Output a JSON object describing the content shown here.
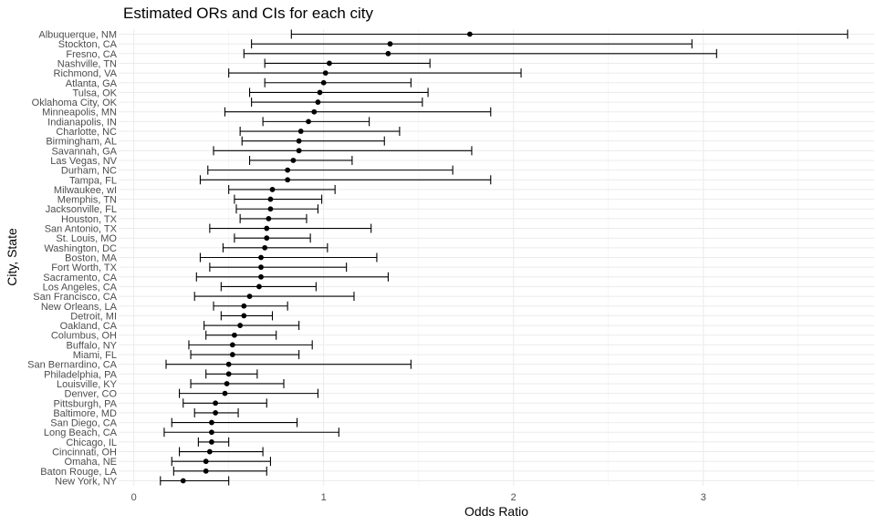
{
  "chart_data": {
    "type": "scatter",
    "title": "Estimated ORs and CIs for each city",
    "xlabel": "Odds Ratio",
    "ylabel": "City, State",
    "xlim": [
      -0.08,
      3.9
    ],
    "x_ticks": [
      0,
      1,
      2,
      3
    ],
    "x_tick_labels": [
      "0",
      "1",
      "2",
      "3"
    ],
    "grid": true,
    "legend": "none",
    "point_color": "#000000",
    "cities": [
      {
        "label": "Albuquerque, NM",
        "or": 1.77,
        "lo": 0.83,
        "hi": 3.76
      },
      {
        "label": "Stockton, CA",
        "or": 1.35,
        "lo": 0.62,
        "hi": 2.94
      },
      {
        "label": "Fresno, CA",
        "or": 1.34,
        "lo": 0.58,
        "hi": 3.07
      },
      {
        "label": "Nashville, TN",
        "or": 1.03,
        "lo": 0.69,
        "hi": 1.56
      },
      {
        "label": "Richmond, VA",
        "or": 1.01,
        "lo": 0.5,
        "hi": 2.04
      },
      {
        "label": "Atlanta, GA",
        "or": 1.0,
        "lo": 0.69,
        "hi": 1.46
      },
      {
        "label": "Tulsa, OK",
        "or": 0.98,
        "lo": 0.61,
        "hi": 1.55
      },
      {
        "label": "Oklahoma City, OK",
        "or": 0.97,
        "lo": 0.62,
        "hi": 1.52
      },
      {
        "label": "Minneapolis, MN",
        "or": 0.95,
        "lo": 0.48,
        "hi": 1.88
      },
      {
        "label": "Indianapolis, IN",
        "or": 0.92,
        "lo": 0.68,
        "hi": 1.24
      },
      {
        "label": "Charlotte, NC",
        "or": 0.88,
        "lo": 0.56,
        "hi": 1.4
      },
      {
        "label": "Birmingham, AL",
        "or": 0.87,
        "lo": 0.57,
        "hi": 1.32
      },
      {
        "label": "Savannah, GA",
        "or": 0.87,
        "lo": 0.42,
        "hi": 1.78
      },
      {
        "label": "Las Vegas, NV",
        "or": 0.84,
        "lo": 0.61,
        "hi": 1.15
      },
      {
        "label": "Durham, NC",
        "or": 0.81,
        "lo": 0.39,
        "hi": 1.68
      },
      {
        "label": "Tampa, FL",
        "or": 0.81,
        "lo": 0.35,
        "hi": 1.88
      },
      {
        "label": "Milwaukee, wI",
        "or": 0.73,
        "lo": 0.5,
        "hi": 1.06
      },
      {
        "label": "Memphis, TN",
        "or": 0.72,
        "lo": 0.53,
        "hi": 0.99
      },
      {
        "label": "Jacksonville, FL",
        "or": 0.72,
        "lo": 0.54,
        "hi": 0.97
      },
      {
        "label": "Houston, TX",
        "or": 0.71,
        "lo": 0.56,
        "hi": 0.91
      },
      {
        "label": "San Antonio, TX",
        "or": 0.7,
        "lo": 0.4,
        "hi": 1.25
      },
      {
        "label": "St. Louis, MO",
        "or": 0.7,
        "lo": 0.53,
        "hi": 0.93
      },
      {
        "label": "Washington, DC",
        "or": 0.69,
        "lo": 0.47,
        "hi": 1.02
      },
      {
        "label": "Boston, MA",
        "or": 0.67,
        "lo": 0.35,
        "hi": 1.28
      },
      {
        "label": "Fort Worth, TX",
        "or": 0.67,
        "lo": 0.4,
        "hi": 1.12
      },
      {
        "label": "Sacramento, CA",
        "or": 0.67,
        "lo": 0.33,
        "hi": 1.34
      },
      {
        "label": "Los Angeles, CA",
        "or": 0.66,
        "lo": 0.46,
        "hi": 0.96
      },
      {
        "label": "San Francisco, CA",
        "or": 0.61,
        "lo": 0.32,
        "hi": 1.16
      },
      {
        "label": "New Orleans, LA",
        "or": 0.58,
        "lo": 0.42,
        "hi": 0.81
      },
      {
        "label": "Detroit, MI",
        "or": 0.58,
        "lo": 0.46,
        "hi": 0.73
      },
      {
        "label": "Oakland, CA",
        "or": 0.56,
        "lo": 0.37,
        "hi": 0.87
      },
      {
        "label": "Columbus, OH",
        "or": 0.53,
        "lo": 0.38,
        "hi": 0.75
      },
      {
        "label": "Buffalo, NY",
        "or": 0.52,
        "lo": 0.29,
        "hi": 0.94
      },
      {
        "label": "Miami, FL",
        "or": 0.52,
        "lo": 0.3,
        "hi": 0.87
      },
      {
        "label": "San Bernardino, CA",
        "or": 0.5,
        "lo": 0.17,
        "hi": 1.46
      },
      {
        "label": "Philadelphia, PA",
        "or": 0.5,
        "lo": 0.38,
        "hi": 0.65
      },
      {
        "label": "Louisville, KY",
        "or": 0.49,
        "lo": 0.3,
        "hi": 0.79
      },
      {
        "label": "Denver, CO",
        "or": 0.48,
        "lo": 0.24,
        "hi": 0.97
      },
      {
        "label": "Pittsburgh, PA",
        "or": 0.43,
        "lo": 0.26,
        "hi": 0.7
      },
      {
        "label": "Baltimore, MD",
        "or": 0.43,
        "lo": 0.32,
        "hi": 0.55
      },
      {
        "label": "San Diego, CA",
        "or": 0.41,
        "lo": 0.2,
        "hi": 0.86
      },
      {
        "label": "Long Beach, CA",
        "or": 0.41,
        "lo": 0.16,
        "hi": 1.08
      },
      {
        "label": "Chicago, IL",
        "or": 0.41,
        "lo": 0.34,
        "hi": 0.5
      },
      {
        "label": "Cincinnati, OH",
        "or": 0.4,
        "lo": 0.24,
        "hi": 0.68
      },
      {
        "label": "Omaha, NE",
        "or": 0.38,
        "lo": 0.2,
        "hi": 0.72
      },
      {
        "label": "Baton Rouge, LA",
        "or": 0.38,
        "lo": 0.21,
        "hi": 0.7
      },
      {
        "label": "New York, NY",
        "or": 0.26,
        "lo": 0.14,
        "hi": 0.5
      }
    ]
  }
}
